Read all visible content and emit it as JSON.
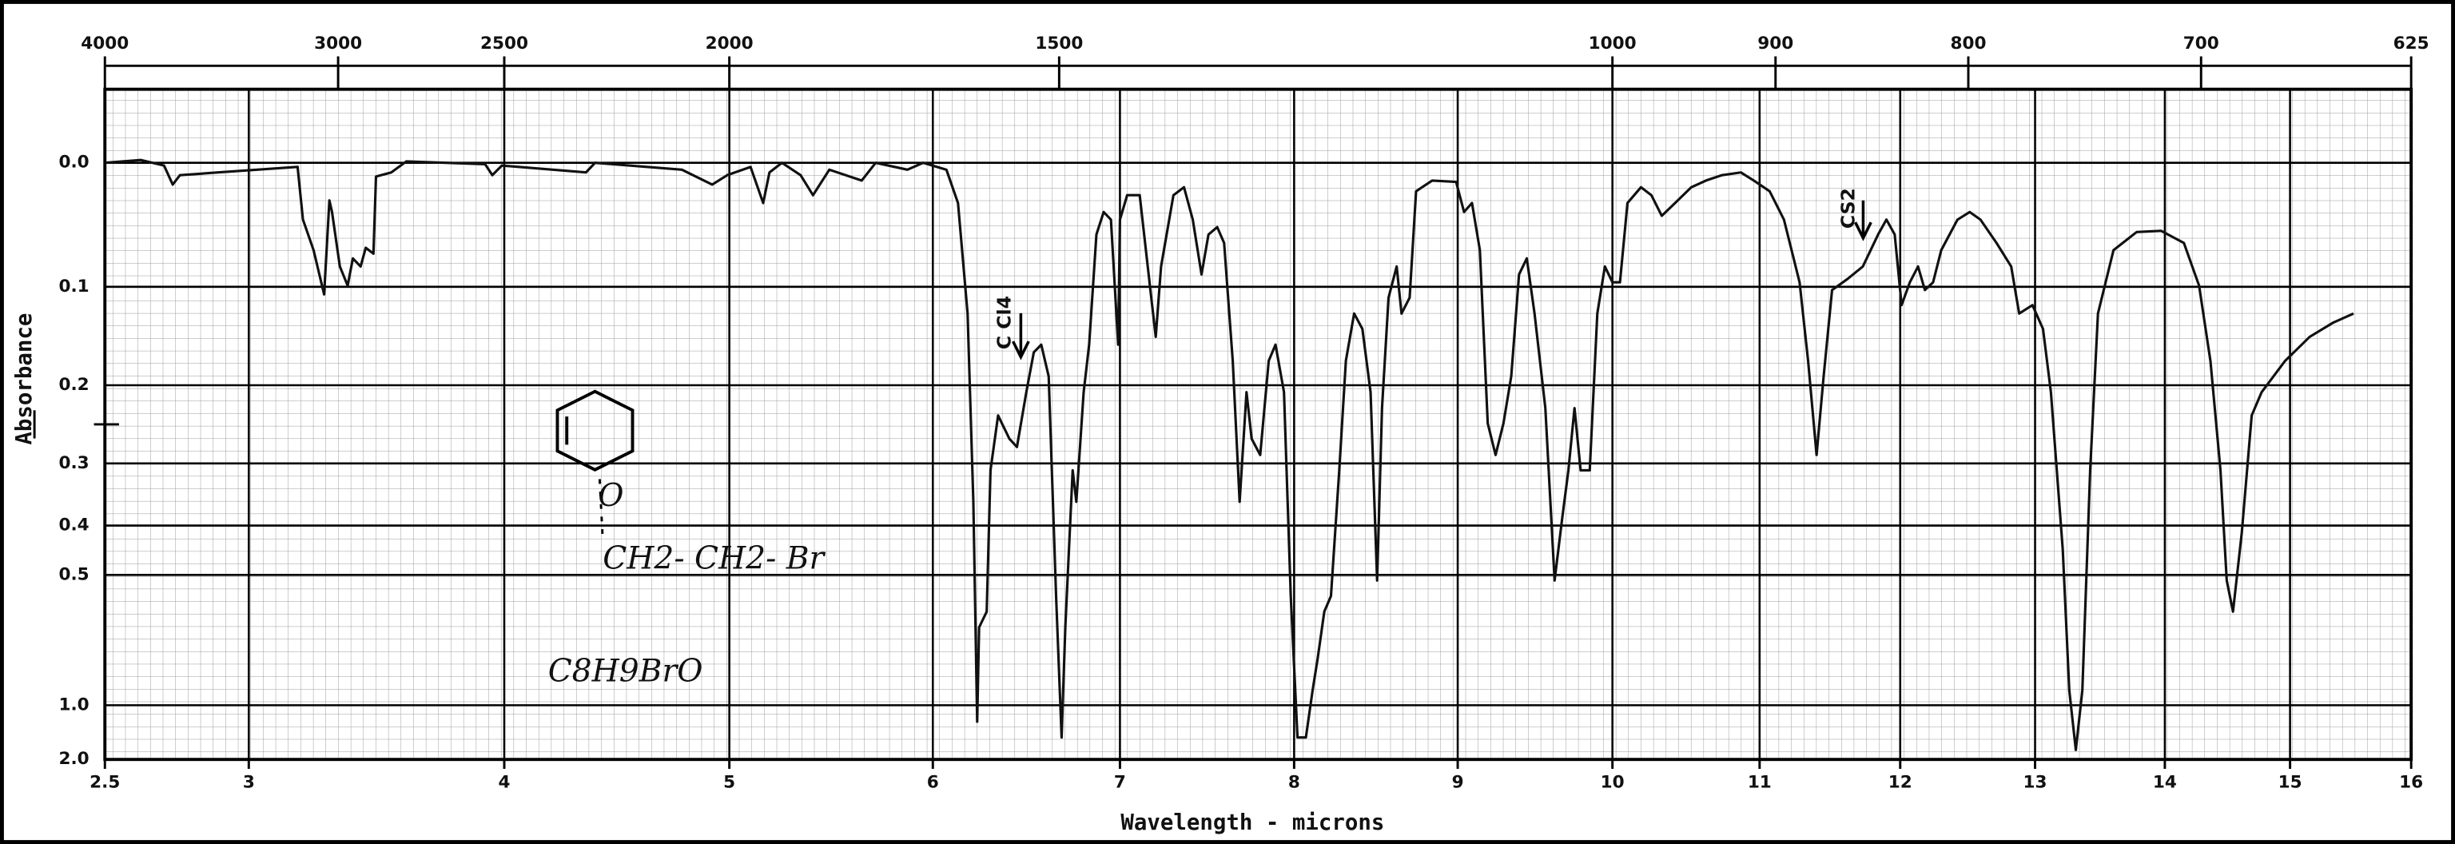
{
  "chart_data": {
    "type": "line",
    "xlabel": "Wavelength - microns",
    "ylabel": "Absorbance",
    "xscale": "sqrt",
    "yscale": "absorbance",
    "grid": true,
    "color": "#111111",
    "xlim": [
      2.5,
      16
    ],
    "xticks": [
      2.5,
      3,
      4,
      5,
      6,
      7,
      8,
      9,
      10,
      11,
      12,
      13,
      14,
      15,
      16
    ],
    "x2ticks": [
      4000,
      3000,
      2500,
      2000,
      1500,
      1000,
      900,
      800,
      700,
      625
    ],
    "ylim": [
      -0.05,
      2.0
    ],
    "yticks": [
      {
        "value": 0,
        "label": "0.0"
      },
      0.1,
      0.2,
      0.3,
      0.4,
      0.5,
      {
        "value": 1,
        "label": "1.0"
      },
      {
        "value": 2,
        "label": "2.0"
      }
    ],
    "annotations": [
      "C Cl4",
      "CS2",
      "O",
      "CH2- CH2- Br",
      "C8H9BrO"
    ],
    "x": [
      2.5,
      2.62,
      2.7,
      2.73,
      2.755,
      2.89,
      3.18,
      3.2,
      3.24,
      3.28,
      3.3,
      3.31,
      3.34,
      3.37,
      3.39,
      3.42,
      3.44,
      3.47,
      3.48,
      3.54,
      3.6,
      3.92,
      3.95,
      3.99,
      4.35,
      4.39,
      4.78,
      4.92,
      4.99,
      5.1,
      5.16,
      5.19,
      5.25,
      5.34,
      5.4,
      5.48,
      5.64,
      5.71,
      5.87,
      5.95,
      6.07,
      6.13,
      6.18,
      6.21,
      6.23,
      6.24,
      6.28,
      6.3,
      6.34,
      6.4,
      6.44,
      6.49,
      6.53,
      6.57,
      6.61,
      6.65,
      6.68,
      6.7,
      6.74,
      6.76,
      6.8,
      6.83,
      6.87,
      6.91,
      6.95,
      6.99,
      7.0,
      7.04,
      7.11,
      7.17,
      7.2,
      7.23,
      7.3,
      7.36,
      7.41,
      7.46,
      7.5,
      7.55,
      7.59,
      7.64,
      7.68,
      7.72,
      7.75,
      7.8,
      7.85,
      7.89,
      7.94,
      7.98,
      8.02,
      8.07,
      8.11,
      8.14,
      8.18,
      8.22,
      8.27,
      8.31,
      8.36,
      8.41,
      8.46,
      8.5,
      8.53,
      8.57,
      8.62,
      8.65,
      8.7,
      8.74,
      8.84,
      8.99,
      9.04,
      9.09,
      9.14,
      9.19,
      9.24,
      9.29,
      9.34,
      9.39,
      9.44,
      9.49,
      9.56,
      9.62,
      9.67,
      9.71,
      9.75,
      9.79,
      9.85,
      9.9,
      9.95,
      10.0,
      10.05,
      10.1,
      10.19,
      10.26,
      10.33,
      10.42,
      10.53,
      10.63,
      10.74,
      10.87,
      10.96,
      11.07,
      11.17,
      11.28,
      11.34,
      11.4,
      11.45,
      11.51,
      11.62,
      11.73,
      11.84,
      11.9,
      11.96,
      12.01,
      12.07,
      12.13,
      12.18,
      12.24,
      12.3,
      12.42,
      12.51,
      12.59,
      12.71,
      12.82,
      12.88,
      12.98,
      13.06,
      13.12,
      13.21,
      13.26,
      13.31,
      13.36,
      13.42,
      13.48,
      13.6,
      13.78,
      13.97,
      14.15,
      14.27,
      14.36,
      14.44,
      14.49,
      14.54,
      14.61,
      14.69,
      14.77,
      14.96,
      15.16,
      15.35,
      15.52
    ],
    "values": [
      0.0,
      -0.002,
      0.002,
      0.016,
      0.009,
      0.007,
      0.003,
      0.043,
      0.068,
      0.107,
      0.028,
      0.037,
      0.082,
      0.099,
      0.075,
      0.082,
      0.066,
      0.071,
      0.01,
      0.007,
      -0.001,
      0.001,
      0.009,
      0.002,
      0.007,
      0.0,
      0.005,
      0.016,
      0.009,
      0.003,
      0.03,
      0.007,
      0.0,
      0.009,
      0.024,
      0.005,
      0.013,
      0.0,
      0.005,
      0.0,
      0.005,
      0.03,
      0.125,
      0.359,
      1.139,
      0.64,
      0.593,
      0.31,
      0.236,
      0.266,
      0.277,
      0.208,
      0.164,
      0.156,
      0.19,
      0.551,
      1.332,
      0.64,
      0.31,
      0.359,
      0.208,
      0.156,
      0.055,
      0.037,
      0.043,
      0.156,
      0.043,
      0.024,
      0.024,
      0.103,
      0.148,
      0.082,
      0.024,
      0.018,
      0.043,
      0.089,
      0.055,
      0.049,
      0.062,
      0.173,
      0.359,
      0.208,
      0.266,
      0.288,
      0.173,
      0.156,
      0.208,
      0.551,
      1.332,
      1.332,
      0.904,
      0.752,
      0.593,
      0.551,
      0.31,
      0.173,
      0.125,
      0.14,
      0.208,
      0.513,
      0.227,
      0.11,
      0.082,
      0.125,
      0.11,
      0.021,
      0.013,
      0.014,
      0.037,
      0.03,
      0.068,
      0.246,
      0.288,
      0.246,
      0.19,
      0.089,
      0.075,
      0.125,
      0.227,
      0.513,
      0.386,
      0.31,
      0.227,
      0.31,
      0.31,
      0.125,
      0.082,
      0.096,
      0.096,
      0.03,
      0.018,
      0.024,
      0.04,
      0.03,
      0.018,
      0.013,
      0.009,
      0.007,
      0.013,
      0.021,
      0.043,
      0.096,
      0.173,
      0.288,
      0.19,
      0.103,
      0.093,
      0.082,
      0.055,
      0.043,
      0.055,
      0.117,
      0.096,
      0.082,
      0.103,
      0.096,
      0.068,
      0.043,
      0.037,
      0.043,
      0.062,
      0.082,
      0.125,
      0.117,
      0.14,
      0.208,
      0.445,
      0.904,
      1.588,
      0.904,
      0.31,
      0.125,
      0.068,
      0.053,
      0.052,
      0.062,
      0.099,
      0.173,
      0.31,
      0.513,
      0.593,
      0.414,
      0.236,
      0.208,
      0.173,
      0.148,
      0.134,
      0.125
    ]
  }
}
